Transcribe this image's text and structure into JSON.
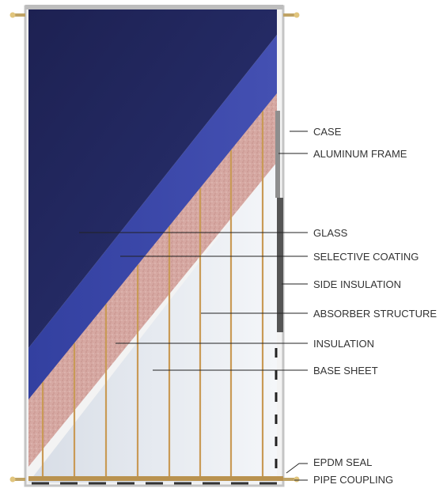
{
  "labels": {
    "case": "CASE",
    "aluminum_frame": "ALUMINUM FRAME",
    "glass": "GLASS",
    "selective_coating": "SELECTIVE COATING",
    "side_insulation": "SIDE INSULATION",
    "absorber_structure": "ABSORBER STRUCTURE",
    "insulation": "INSULATION",
    "base_sheet": "BASE SHEET",
    "epdm_seal": "EPDM SEAL",
    "pipe_coupling": "PIPE COUPLING"
  },
  "colors": {
    "glass_dark": "#22285e",
    "glass_band": "#3a46a3",
    "coating": "#d6a8a2",
    "base_sheet": "#e9edf3",
    "riser": "#c99a56",
    "frame": "#cfcfcf",
    "fitting": "#d8bf7a"
  }
}
